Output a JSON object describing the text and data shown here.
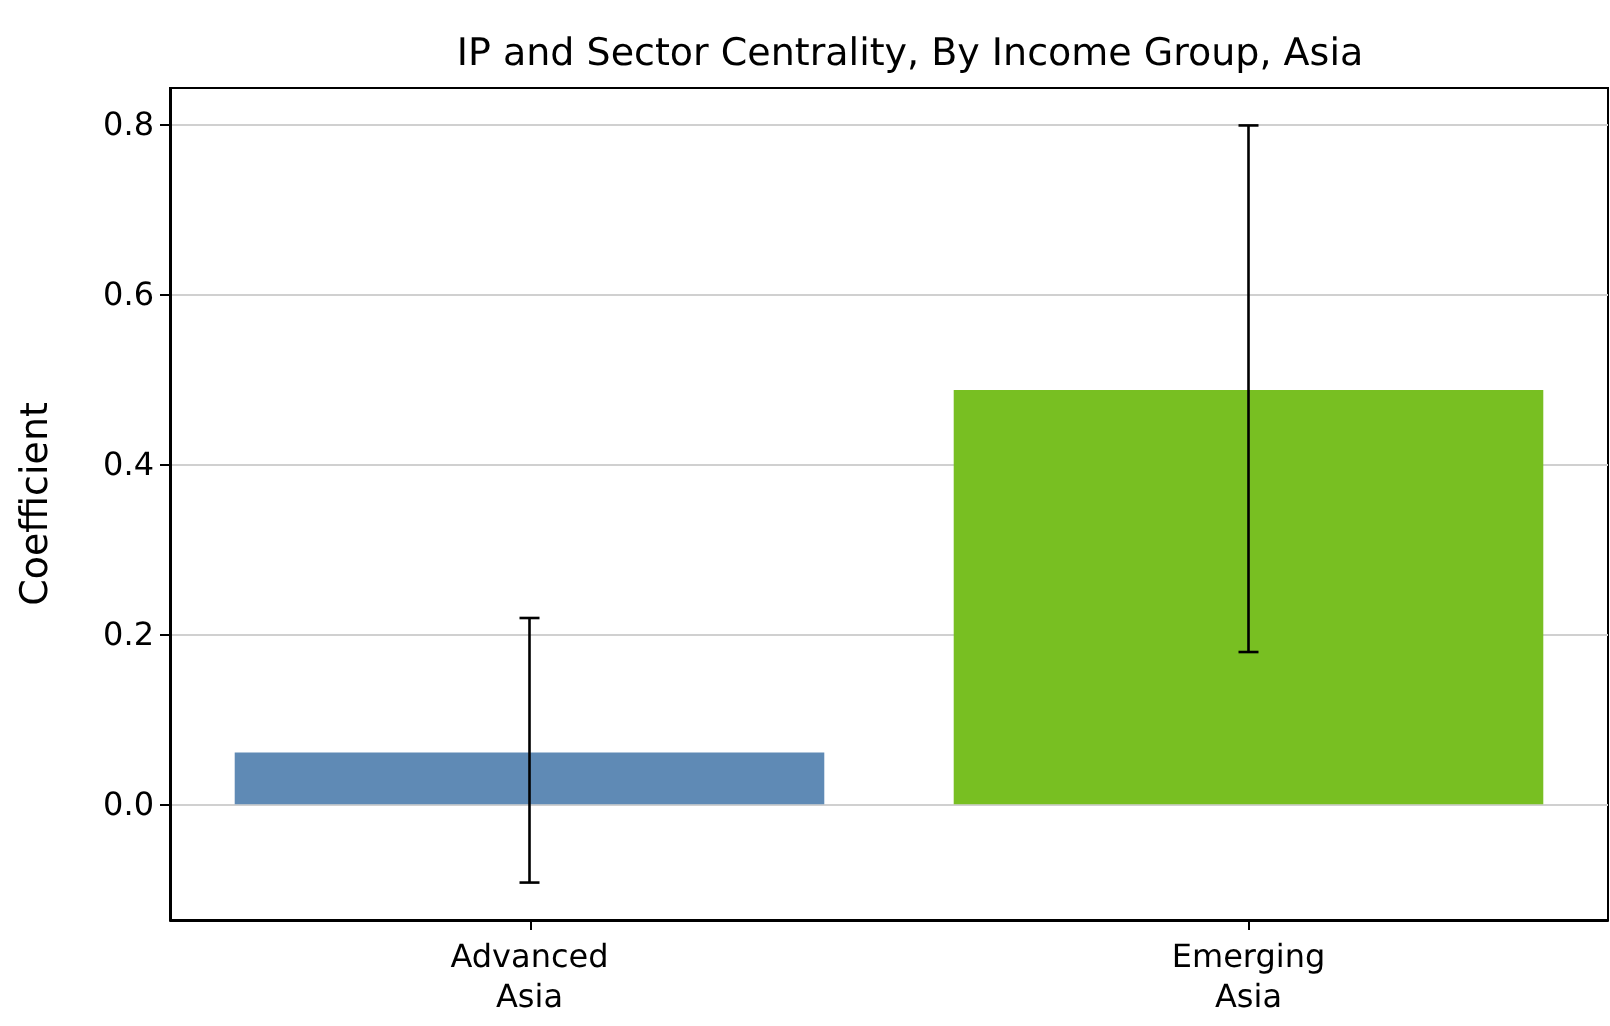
{
  "chart_data": {
    "type": "bar",
    "title": "IP and Sector Centrality, By Income Group, Asia",
    "ylabel": "Coefficient",
    "categories": [
      "Advanced\nAsia",
      "Emerging\nAsia"
    ],
    "values": [
      0.061,
      0.487
    ],
    "colors": [
      "#5f8ab5",
      "#78bf22"
    ],
    "errors": [
      [
        -0.092,
        0.219
      ],
      [
        0.179,
        0.798
      ]
    ],
    "ylim": [
      -0.136,
      0.842
    ],
    "yticks": [
      {
        "value": 0,
        "label": "0.0"
      },
      0.2,
      0.4,
      0.6,
      0.8
    ],
    "grid": "y"
  }
}
